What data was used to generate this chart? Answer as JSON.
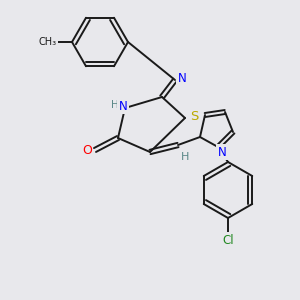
{
  "background_color": "#e8e8ec",
  "bond_color": "#1a1a1a",
  "atom_colors": {
    "N": "#0000ff",
    "O": "#ff0000",
    "S": "#bbaa00",
    "Cl": "#228822",
    "H": "#5a8888",
    "C": "#1a1a1a"
  },
  "fig_size": [
    3.0,
    3.0
  ],
  "dpi": 100,
  "lw": 1.4,
  "fs": 8.5
}
